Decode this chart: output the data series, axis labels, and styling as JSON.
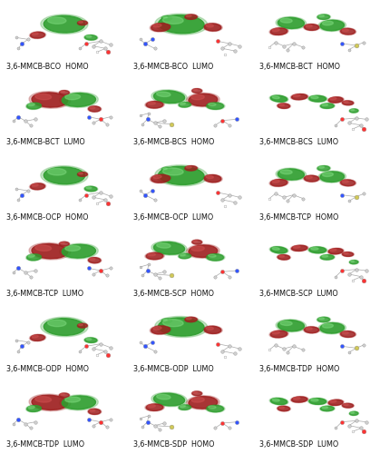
{
  "labels": [
    "3,6-MMCB-BCO  HOMO",
    "3,6-MMCB-BCO  LUMO",
    "3,6-MMCB-BCT  HOMO",
    "3,6-MMCB-BCT  LUMO",
    "3,6-MMCB-BCS  HOMO",
    "3,6-MMCB-BCS  LUMO",
    "3,6-MMCB-OCP  HOMO",
    "3,6-MMCB-OCP  LUMO",
    "3,6-MMCB-TCP  HOMO",
    "3,6-MMCB-TCP  LUMO",
    "3,6-MMCB-SCP  HOMO",
    "3,6-MMCB-SCP  LUMO",
    "3,6-MMCB-ODP  HOMO",
    "3,6-MMCB-ODP  LUMO",
    "3,6-MMCB-TDP  HOMO",
    "3,6-MMCB-TDP  LUMO",
    "3,6-MMCB-SDP  HOMO",
    "3,6-MMCB-SDP  LUMO"
  ],
  "ncols": 3,
  "nrows": 6,
  "figsize": [
    4.19,
    5.0
  ],
  "dpi": 100,
  "bg_color": "#ffffff",
  "label_fontsize": 5.8,
  "label_color": "#111111"
}
